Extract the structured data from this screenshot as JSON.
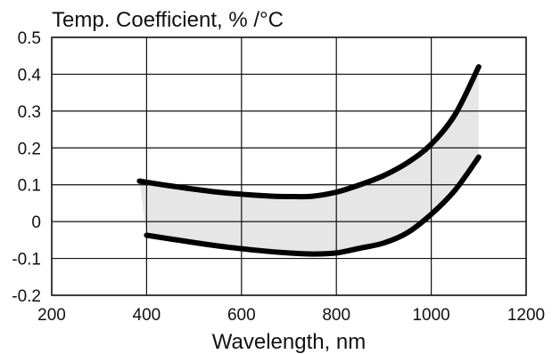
{
  "chart_data": {
    "type": "line",
    "title": "Temp. Coefficient, % /°C",
    "xlabel": "Wavelength, nm",
    "ylabel": "",
    "xlim": [
      200,
      1200
    ],
    "ylim": [
      -0.2,
      0.5
    ],
    "x_ticks": [
      200,
      400,
      600,
      800,
      1000,
      1200
    ],
    "y_ticks": [
      -0.2,
      -0.1,
      0,
      0.1,
      0.2,
      0.3,
      0.4,
      0.5
    ],
    "x_tick_labels": [
      "200",
      "400",
      "600",
      "800",
      "1000",
      "1200"
    ],
    "y_tick_labels": [
      "-0.2",
      "-0.1",
      "0",
      "0.1",
      "0.2",
      "0.3",
      "0.4",
      "0.5"
    ],
    "grid": true,
    "band_fill_color": "#e6e6e6",
    "line_color": "#000000",
    "series": [
      {
        "x": [
          385,
          450,
          550,
          650,
          700,
          750,
          800,
          850,
          900,
          950,
          1000,
          1050,
          1100
        ],
        "y": [
          0.11,
          0.097,
          0.08,
          0.07,
          0.068,
          0.069,
          0.08,
          0.1,
          0.125,
          0.16,
          0.21,
          0.29,
          0.42
        ]
      },
      {
        "x": [
          400,
          450,
          550,
          650,
          700,
          750,
          800,
          850,
          900,
          950,
          1000,
          1050,
          1100
        ],
        "y": [
          -0.037,
          -0.047,
          -0.066,
          -0.08,
          -0.085,
          -0.088,
          -0.085,
          -0.072,
          -0.058,
          -0.03,
          0.02,
          0.085,
          0.175
        ]
      }
    ]
  }
}
